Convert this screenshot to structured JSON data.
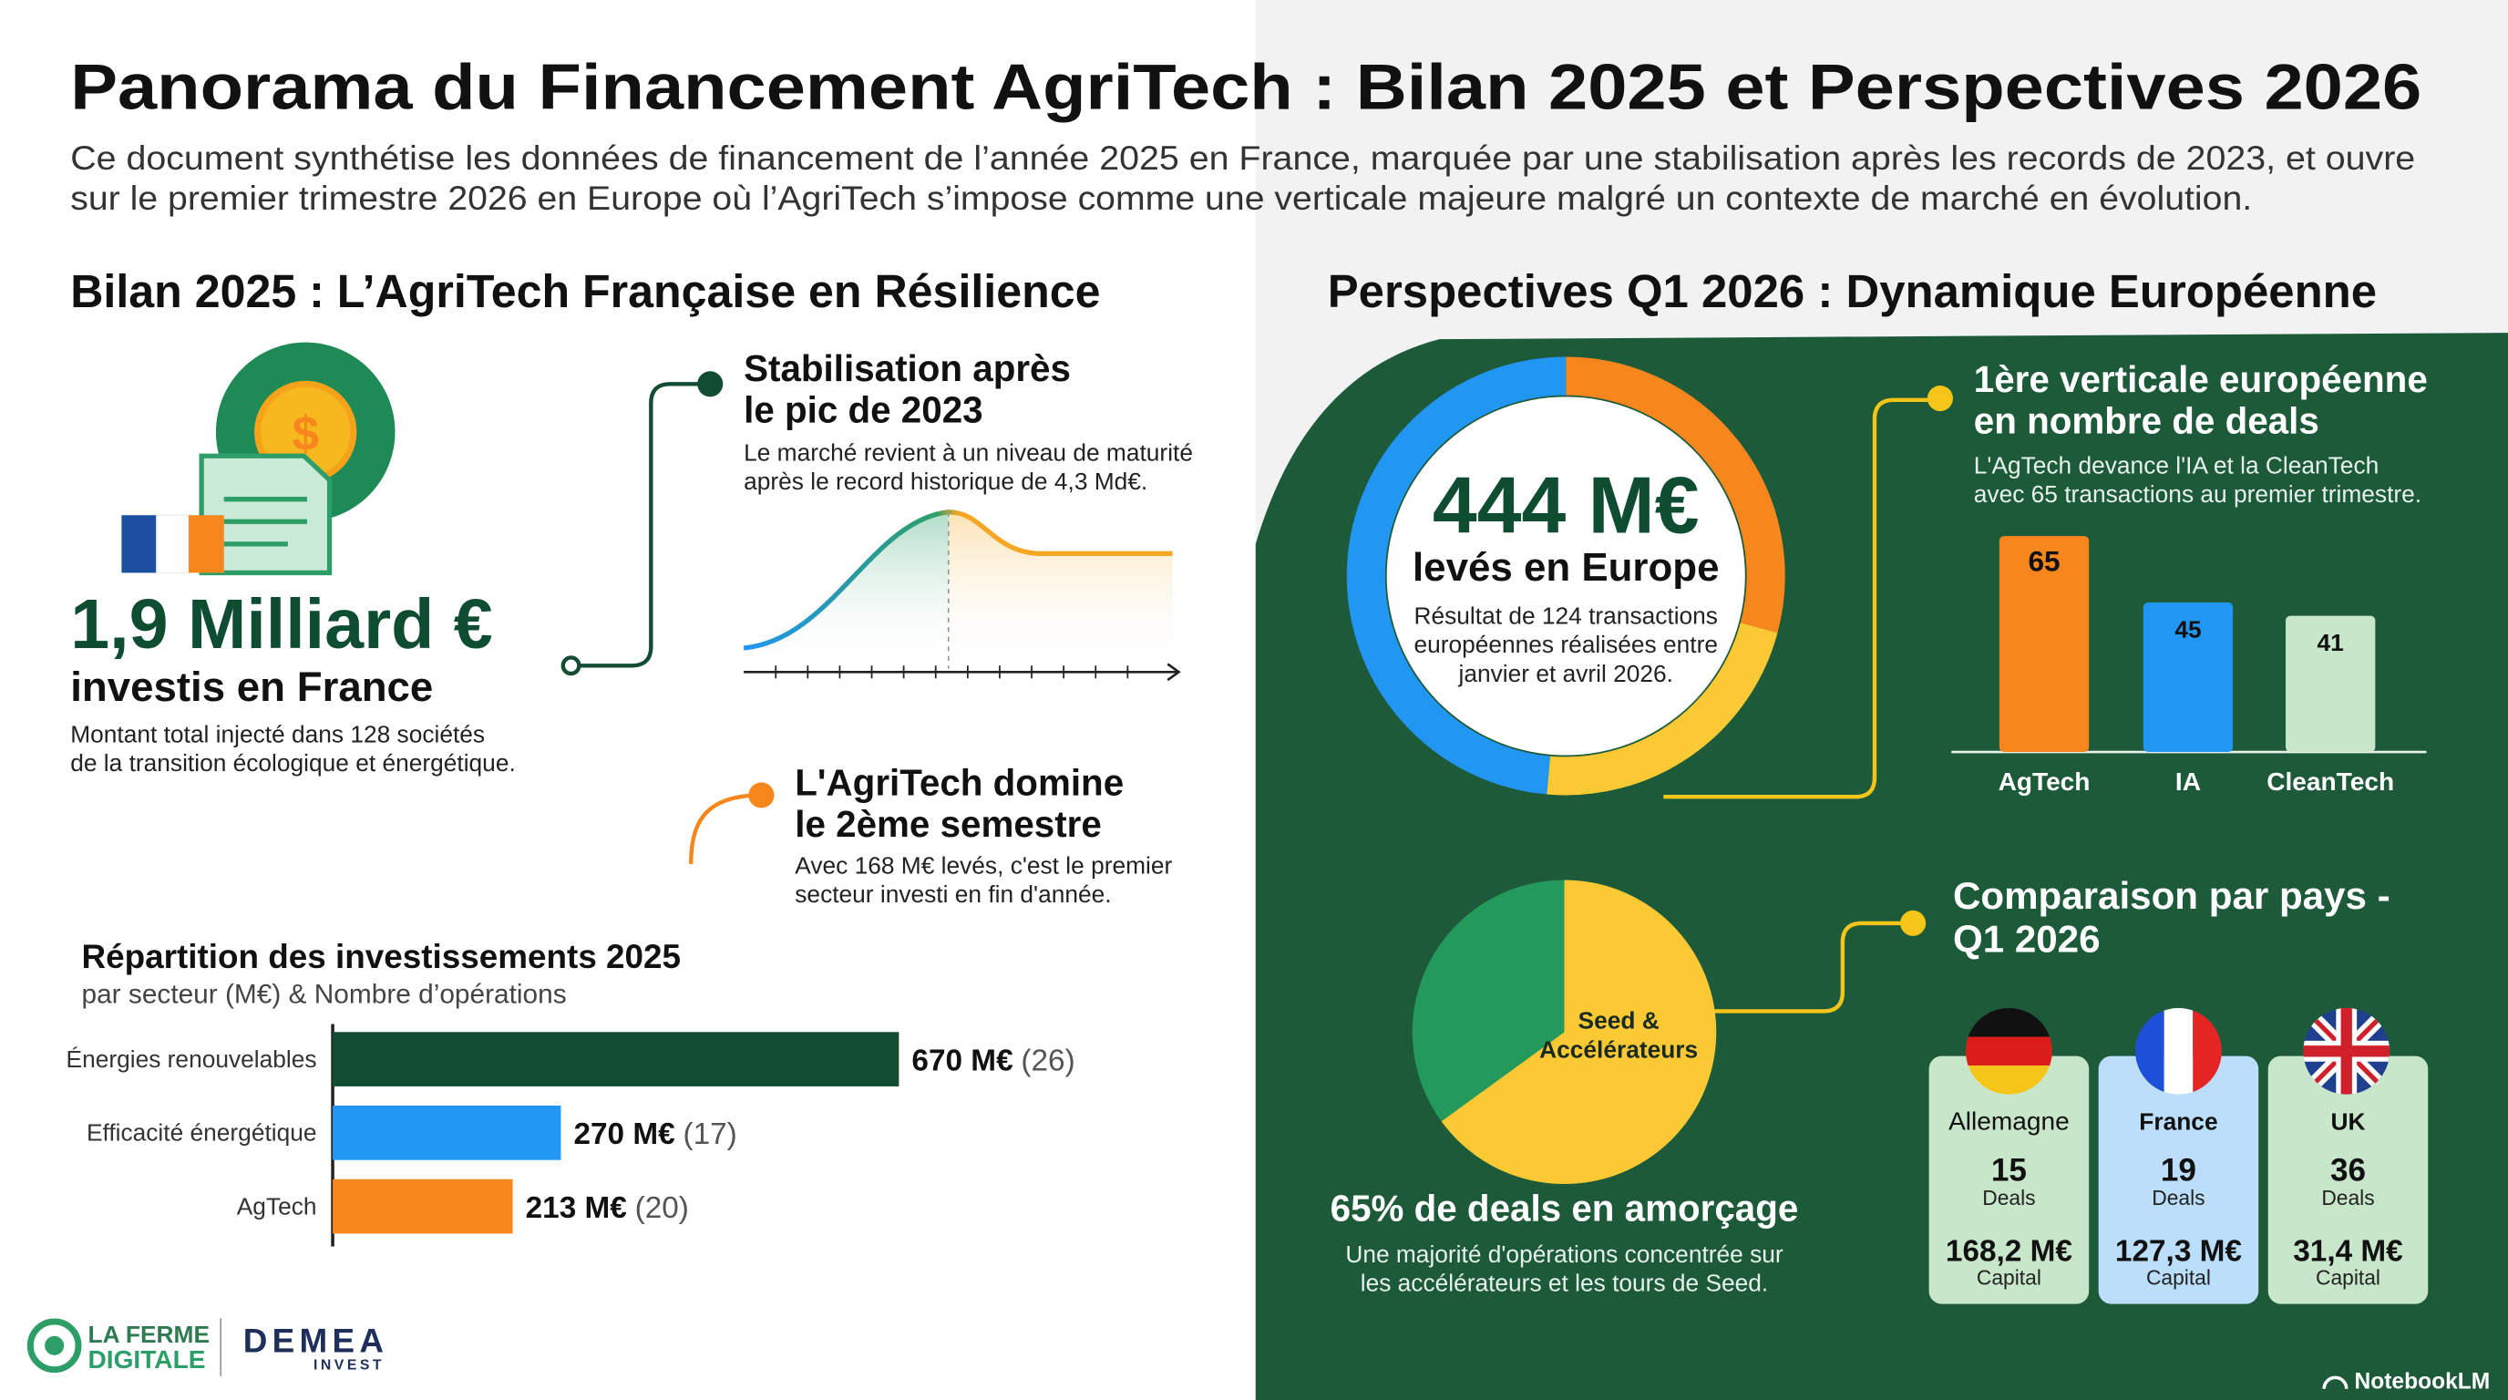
{
  "header": {
    "title": "Panorama du Financement AgriTech : Bilan 2025 et Perspectives 2026",
    "subtitle": [
      "Ce document synthétise les données de financement de l’année 2025 en France, marquée par une stabilisation après les records de 2023, et ouvre",
      "sur le premier trimestre 2026 en Europe où l’AgriTech s’impose comme une verticale majeure malgré un contexte de marché en évolution."
    ]
  },
  "left": {
    "heading": "Bilan 2025 : L’AgriTech Française en Résilience",
    "kpi": {
      "value": "1,9 Milliard €",
      "label": "investis en France",
      "text": [
        "Montant total injecté dans 128 sociétés",
        "de la transition écologique et énergétique."
      ]
    },
    "callouts": [
      {
        "title": [
          "Stabilisation après",
          "le pic de 2023"
        ],
        "text": [
          "Le marché revient à un niveau de maturité",
          "après le record historique de 4,3 Md€."
        ]
      },
      {
        "title": [
          "L'AgriTech domine",
          "le 2ème semestre"
        ],
        "text": [
          "Avec 168 M€ levés, c'est le premier",
          "secteur investi en fin d'année."
        ]
      }
    ]
  },
  "right": {
    "heading": "Perspectives Q1 2026 : Dynamique Européenne",
    "kpi": {
      "value": "444 M€",
      "label": "levés en Europe",
      "text": [
        "Résultat de 124 transactions",
        "européennes réalisées entre",
        "janvier et avril 2026."
      ]
    },
    "vertical": {
      "title": [
        "1ère verticale européenne",
        "en nombre de deals"
      ],
      "text": [
        "L'AgTech devance l'IA et la CleanTech",
        "avec 65 transactions au premier trimestre."
      ]
    },
    "seed_text": [
      "Une majorité d'opérations concentrée sur",
      "les accélérateurs et les tours de Seed."
    ],
    "countries": {
      "title": [
        "Comparaison par pays -",
        "Q1 2026"
      ],
      "items": [
        {
          "name": "Allemagne",
          "deals": 15,
          "deals_label": "Deals",
          "capital": "168,2 M€",
          "capital_label": "Capital"
        },
        {
          "name": "France",
          "deals": 19,
          "deals_label": "Deals",
          "capital": "127,3 M€",
          "capital_label": "Capital"
        },
        {
          "name": "UK",
          "deals": 36,
          "deals_label": "Deals",
          "capital": "31,4 M€",
          "capital_label": "Capital"
        }
      ]
    }
  },
  "footer": {
    "logo1": [
      "LA FERME",
      "DIGITALE"
    ],
    "logo2": "DEMEA",
    "logo2_sub": "INVEST",
    "watermark": "NotebookLM"
  },
  "chart_data": [
    {
      "type": "bar",
      "horizontal": true,
      "title": "Répartition des investissements 2025",
      "subtitle": "par secteur (M€) & Nombre d’opérations",
      "categories": [
        "Énergies renouvelables",
        "Efficacité énergétique",
        "AgTech"
      ],
      "values": [
        670,
        270,
        213
      ],
      "value_labels": [
        "670 M€",
        "270 M€",
        "213 M€"
      ],
      "counts": [
        26,
        17,
        20
      ],
      "count_labels": [
        "(26)",
        "(17)",
        "(20)"
      ],
      "colors": [
        "#124d33",
        "#2196f3",
        "#f7861c"
      ]
    },
    {
      "type": "bar",
      "horizontal": false,
      "categories": [
        "AgTech",
        "IA",
        "CleanTech"
      ],
      "values": [
        65,
        45,
        41
      ],
      "colors": [
        "#f7861c",
        "#2196f3",
        "#c8e6c9"
      ]
    },
    {
      "type": "pie",
      "title": "65% de deals en amorçage",
      "categories": [
        "Seed & Accélérateurs",
        null
      ],
      "values": [
        65,
        35
      ],
      "colors": [
        "#fbc934",
        "#239a5c"
      ]
    }
  ]
}
